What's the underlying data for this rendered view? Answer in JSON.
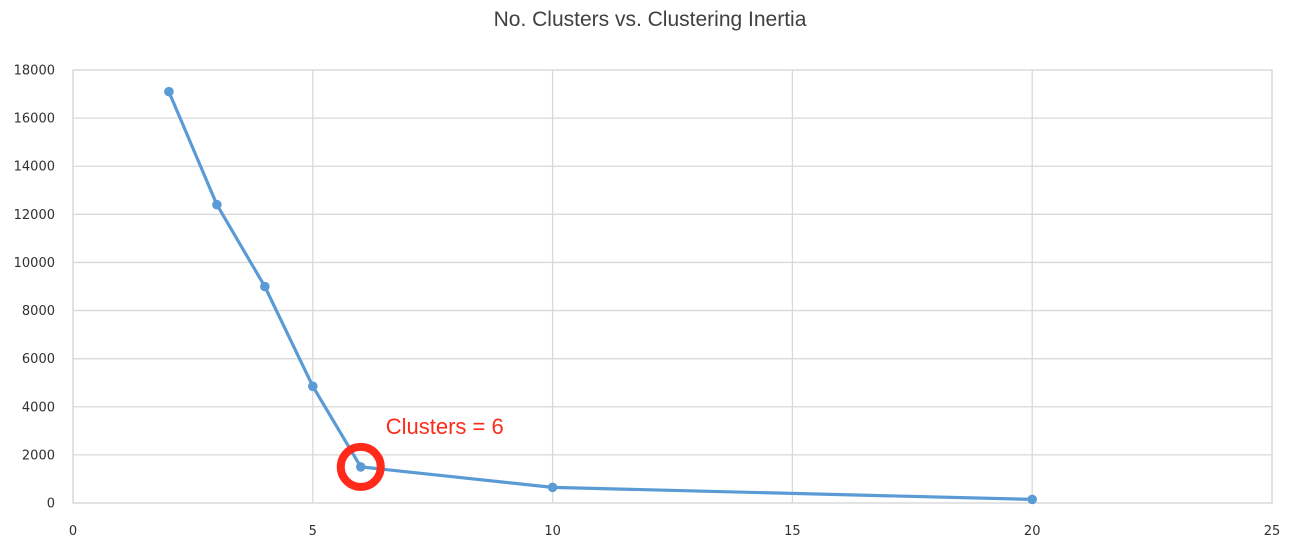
{
  "chart_data": {
    "type": "scatter",
    "title": "No. Clusters vs. Clustering Inertia",
    "xlabel": "",
    "ylabel": "",
    "xlim": [
      0,
      25
    ],
    "ylim": [
      0,
      18000
    ],
    "x_ticks": [
      0,
      5,
      10,
      15,
      20,
      25
    ],
    "y_ticks": [
      0,
      2000,
      4000,
      6000,
      8000,
      10000,
      12000,
      14000,
      16000,
      18000
    ],
    "grid": true,
    "legend": "none",
    "series": [
      {
        "x": [
          2,
          3,
          4,
          5,
          6,
          10,
          20
        ],
        "y": [
          17100,
          12400,
          9000,
          4850,
          1500,
          650,
          150
        ],
        "color": "#5b9bd5",
        "lines": true
      }
    ],
    "annotations": [
      {
        "text": "Clusters = 6",
        "x": 6,
        "y": 1500,
        "color": "#ff2a1a",
        "marker": "circle"
      }
    ]
  }
}
